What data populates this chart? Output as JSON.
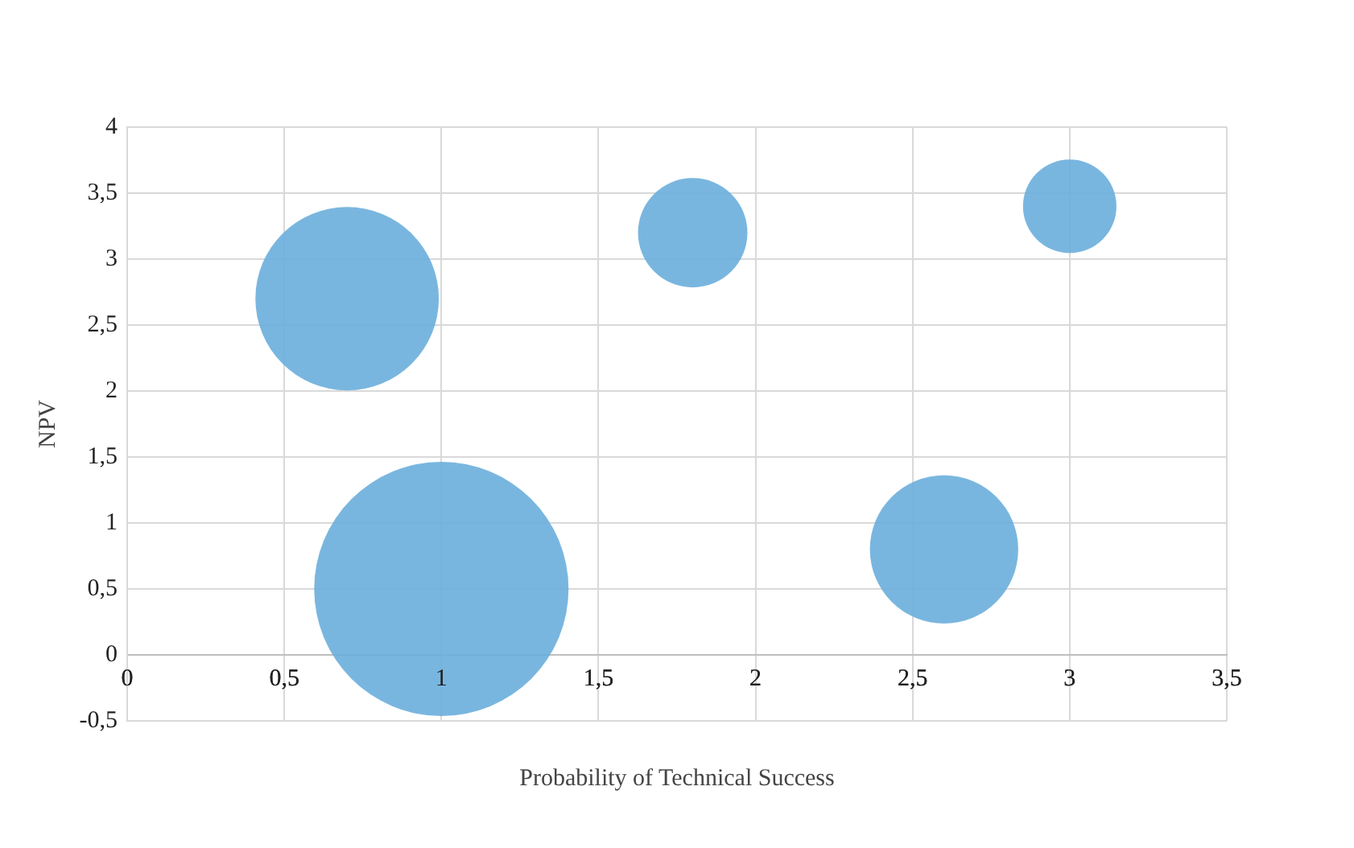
{
  "chart_data": {
    "type": "bubble",
    "xlabel": "Probability of Technical Success",
    "ylabel": "NPV",
    "x": [
      0.7,
      1.0,
      1.8,
      2.6,
      3.0
    ],
    "values": [
      2.7,
      0.5,
      3.2,
      0.8,
      3.4
    ],
    "sizes": [
      0.52,
      1,
      0.185,
      0.34,
      0.135
    ],
    "color": "#6aaedb",
    "xlim": [
      0,
      3.5
    ],
    "xticks": [
      0,
      {
        "value": 0.5,
        "label": "0,5"
      },
      1,
      {
        "value": 1.5,
        "label": "1,5"
      },
      2,
      {
        "value": 2.5,
        "label": "2,5"
      },
      3,
      {
        "value": 3.5,
        "label": "3,5"
      }
    ],
    "ylim": [
      -0.5,
      4
    ],
    "yticks": [
      {
        "value": -0.5,
        "label": "-0,5"
      },
      0,
      {
        "value": 0.5,
        "label": "0,5"
      },
      1,
      {
        "value": 1.5,
        "label": "1,5"
      },
      2,
      {
        "value": 2.5,
        "label": "2,5"
      },
      3,
      {
        "value": 3.5,
        "label": "3,5"
      },
      4
    ],
    "grid": true,
    "legend": false
  }
}
